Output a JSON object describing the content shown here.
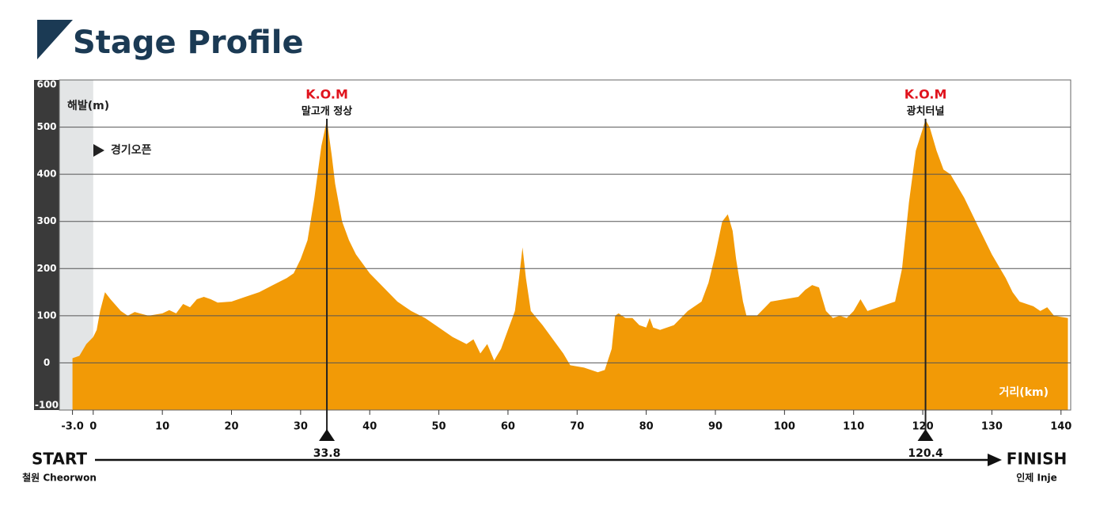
{
  "chart_data": {
    "type": "area",
    "title": "Stage Profile",
    "y_label": "해발(m)",
    "x_label": "거리(km)",
    "open_label": "경기오픈",
    "color": "#f29a06",
    "x": [
      -3,
      -2,
      -1,
      0,
      0.5,
      1,
      1.7,
      2.5,
      4,
      5,
      6,
      8,
      10,
      11,
      12,
      13,
      14,
      15,
      16,
      17,
      18,
      20,
      22,
      24,
      26,
      28,
      29,
      30,
      31,
      32,
      33,
      33.8,
      34.5,
      35,
      36,
      37,
      38,
      40,
      42,
      44,
      46,
      48,
      50,
      52,
      54,
      55,
      56,
      57,
      58,
      59,
      60,
      61,
      61.6,
      62.1,
      62.6,
      63.3,
      65,
      67,
      68,
      69,
      71,
      73,
      74,
      75,
      75.5,
      76,
      77,
      78,
      79,
      80,
      80.5,
      81,
      82,
      84,
      86,
      88,
      89,
      90,
      91,
      91.8,
      92.5,
      93,
      94,
      94.5,
      96,
      98,
      100,
      102,
      103,
      104,
      105,
      106,
      107,
      108,
      109,
      110,
      111,
      112,
      114,
      116,
      117,
      118,
      119,
      120.4,
      121,
      122,
      123,
      124,
      126,
      128,
      130,
      132,
      133,
      134,
      136,
      137,
      138,
      139,
      141
    ],
    "values": [
      10,
      15,
      40,
      55,
      70,
      110,
      150,
      135,
      110,
      100,
      108,
      100,
      105,
      112,
      105,
      125,
      118,
      135,
      140,
      135,
      128,
      130,
      140,
      150,
      165,
      180,
      190,
      220,
      260,
      350,
      460,
      515,
      440,
      380,
      300,
      260,
      230,
      190,
      160,
      130,
      110,
      95,
      75,
      55,
      40,
      50,
      20,
      40,
      5,
      30,
      70,
      110,
      180,
      245,
      180,
      110,
      80,
      40,
      20,
      -5,
      -10,
      -20,
      -15,
      30,
      100,
      105,
      95,
      95,
      80,
      75,
      95,
      75,
      70,
      80,
      110,
      130,
      170,
      230,
      300,
      315,
      280,
      220,
      130,
      100,
      100,
      130,
      135,
      140,
      155,
      165,
      160,
      110,
      95,
      100,
      95,
      110,
      135,
      110,
      120,
      130,
      200,
      340,
      450,
      515,
      500,
      450,
      410,
      400,
      350,
      290,
      230,
      180,
      150,
      130,
      120,
      110,
      118,
      100,
      95
    ],
    "xlim": [
      -4.9,
      141.4
    ],
    "ylim": [
      -100,
      600
    ],
    "xticks": [
      {
        "value": -3,
        "label": "-3.0"
      },
      0,
      10,
      20,
      30,
      40,
      50,
      60,
      70,
      80,
      90,
      100,
      110,
      120,
      130,
      140
    ],
    "yticks": [
      -100,
      0,
      100,
      200,
      300,
      400,
      500,
      600
    ],
    "grid": true,
    "markers": [
      {
        "x": 33.8,
        "label": "K.O.M",
        "name": "말고개 정상"
      },
      {
        "x": 120.4,
        "label": "K.O.M",
        "name": "광치터널"
      }
    ],
    "start": {
      "label": "START",
      "place": "철원 Cheorwon"
    },
    "finish": {
      "label": "FINISH",
      "place": "인제 Inje"
    }
  }
}
